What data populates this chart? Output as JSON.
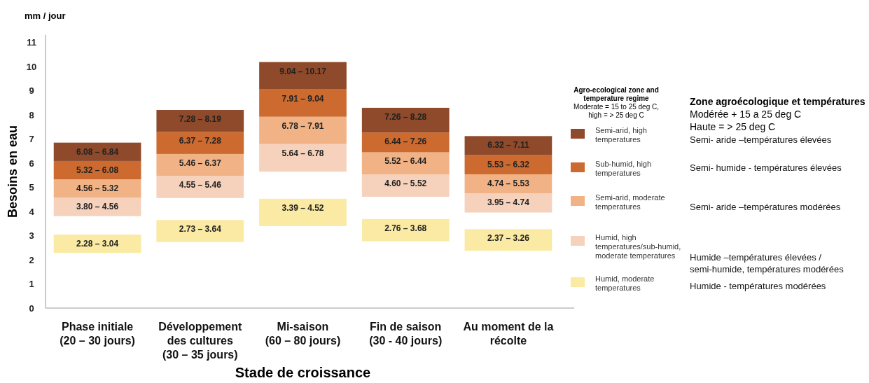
{
  "chart_data": {
    "type": "bar",
    "title": "mm / jour",
    "ylabel": "Besoins en eau",
    "xlabel": "Stade de croissance",
    "legend_title": "Agro-ecological zone and temperature regime",
    "legend": "right",
    "categories": [
      "Phase initiale (20 – 30 jours)",
      "Développement des cultures (30 – 35 jours)",
      "Mi-saison (60 – 80 jours)",
      "Fin de saison (30 - 40 jours)",
      "Au moment de la récolte"
    ],
    "ylim": [
      0,
      11.3
    ],
    "yticks": [
      0,
      1,
      2,
      3,
      4,
      5,
      6,
      7,
      8,
      9,
      10,
      11
    ],
    "grid": false,
    "series": [
      {
        "name": "Humid, moderate temperatures",
        "color": "#faeaa4",
        "base": [
          2.28,
          2.73,
          3.39,
          2.76,
          2.37
        ],
        "values": [
          0.76,
          0.91,
          1.13,
          0.92,
          0.89
        ]
      },
      {
        "name": "Humid, high temperatures/sub-humid, moderate temperatures",
        "color": "#f6d2bc",
        "base": [
          3.8,
          4.55,
          5.64,
          4.6,
          3.95
        ],
        "values": [
          0.76,
          0.91,
          1.14,
          0.92,
          0.79
        ]
      },
      {
        "name": "Semi-arid, moderate temperatures",
        "color": "#f1b386",
        "base": [
          4.56,
          5.46,
          6.78,
          5.52,
          4.74
        ],
        "values": [
          0.76,
          0.91,
          1.13,
          0.92,
          0.79
        ]
      },
      {
        "name": "Sub-humid, high temperatures",
        "color": "#cd6a2f",
        "base": [
          5.32,
          6.37,
          7.91,
          6.44,
          5.53
        ],
        "values": [
          0.76,
          0.91,
          1.13,
          0.82,
          0.79
        ]
      },
      {
        "name": "Semi-arid, high temperatures",
        "color": "#8e4a2a",
        "base": [
          6.08,
          7.28,
          9.04,
          7.26,
          6.32
        ],
        "values": [
          0.76,
          0.91,
          1.13,
          1.02,
          0.79
        ]
      }
    ],
    "annotations": [
      "Moderate = 15 to 25 deg C, high = > 25 deg C",
      "Zone agroécologique et températures",
      "Modérée + 15 a 25 deg C",
      "Haute = > 25 deg C",
      "Humide - températures modérées",
      "Humide –températures élevées / semi-humide, températures modérées",
      "Semi- aride –températures modérées",
      "Semi- humide - températures élevées",
      "Semi- aride –températures élevées",
      {
        "text": "2.28 – 3.04",
        "x": "Phase initiale (20 – 30 jours)",
        "y": 3.04
      },
      {
        "text": "2.73 – 3.64",
        "x": "Développement des cultures (30 – 35 jours)",
        "y": 3.64
      },
      {
        "text": "3.39 – 4.52",
        "x": "Mi-saison (60 – 80 jours)",
        "y": 4.52
      },
      {
        "text": "2.76 – 3.68",
        "x": "Fin de saison (30 - 40 jours)",
        "y": 3.68
      },
      {
        "text": "2.37 – 3.26",
        "x": "Au moment de la récolte",
        "y": 3.26
      },
      {
        "text": "3.80 – 4.56",
        "x": "Phase initiale (20 – 30 jours)",
        "y": 4.56
      },
      {
        "text": "4.55 – 5.46",
        "x": "Développement des cultures (30 – 35 jours)",
        "y": 5.46
      },
      {
        "text": "5.64 – 6.78",
        "x": "Mi-saison (60 – 80 jours)",
        "y": 6.78
      },
      {
        "text": "4.60 – 5.52",
        "x": "Fin de saison (30 - 40 jours)",
        "y": 5.52
      },
      {
        "text": "3.95 – 4.74",
        "x": "Au moment de la récolte",
        "y": 4.74
      },
      {
        "text": "4.56 – 5.32",
        "x": "Phase initiale (20 – 30 jours)",
        "y": 5.32
      },
      {
        "text": "5.46 – 6.37",
        "x": "Développement des cultures (30 – 35 jours)",
        "y": 6.37
      },
      {
        "text": "6.78 – 7.91",
        "x": "Mi-saison (60 – 80 jours)",
        "y": 7.91
      },
      {
        "text": "5.52 – 6.44",
        "x": "Fin de saison (30 - 40 jours)",
        "y": 6.44
      },
      {
        "text": "4.74 – 5.53",
        "x": "Au moment de la récolte",
        "y": 5.53
      },
      {
        "text": "5.32 – 6.08",
        "x": "Phase initiale (20 – 30 jours)",
        "y": 6.08
      },
      {
        "text": "6.37 – 7.28",
        "x": "Développement des cultures (30 – 35 jours)",
        "y": 7.28
      },
      {
        "text": "7.91 – 9.04",
        "x": "Mi-saison (60 – 80 jours)",
        "y": 9.04
      },
      {
        "text": "6.44 – 7.26",
        "x": "Fin de saison (30 - 40 jours)",
        "y": 7.26
      },
      {
        "text": "5.53 – 6.32",
        "x": "Au moment de la récolte",
        "y": 6.32
      },
      {
        "text": "6.08 – 6.84",
        "x": "Phase initiale (20 – 30 jours)",
        "y": 6.84
      },
      {
        "text": "7.28 – 8.19",
        "x": "Développement des cultures (30 – 35 jours)",
        "y": 8.19
      },
      {
        "text": "9.04 – 10.17",
        "x": "Mi-saison (60 – 80 jours)",
        "y": 10.17
      },
      {
        "text": "7.26 – 8.28",
        "x": "Fin de saison (30 - 40 jours)",
        "y": 8.28
      },
      {
        "text": "6.32 – 7.11",
        "x": "Au moment de la récolte",
        "y": 7.11
      }
    ]
  }
}
